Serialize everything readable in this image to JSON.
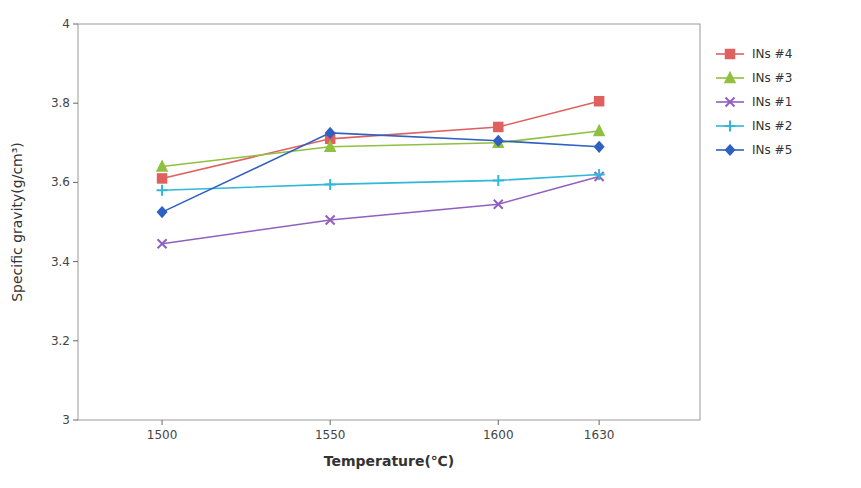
{
  "chart_data": {
    "type": "line",
    "xlabel": "Temperature(℃)",
    "ylabel": "Specific gravity(g/cm³)",
    "x": [
      1500,
      1550,
      1600,
      1630
    ],
    "series": [
      {
        "name": "INs #4",
        "color": "#e06060",
        "marker": "square",
        "line_style": "solid",
        "values": [
          3.61,
          3.71,
          3.74,
          3.805
        ]
      },
      {
        "name": "INs #3",
        "color": "#90c040",
        "marker": "triangle",
        "line_style": "solid",
        "values": [
          3.64,
          3.69,
          3.7,
          3.73
        ]
      },
      {
        "name": "INs #1",
        "color": "#9060c0",
        "marker": "x",
        "line_style": "solid",
        "values": [
          3.445,
          3.505,
          3.545,
          3.615
        ]
      },
      {
        "name": "INs #2",
        "color": "#30b8d8",
        "marker": "plus",
        "line_style": "solid",
        "values": [
          3.58,
          3.595,
          3.605,
          3.62
        ]
      },
      {
        "name": "INs #5",
        "color": "#3060c0",
        "marker": "diamond",
        "line_style": "solid",
        "values": [
          3.525,
          3.725,
          3.705,
          3.69
        ]
      }
    ],
    "xlim": [
      1475,
      1660
    ],
    "ylim": [
      3.0,
      4.0
    ],
    "xticks": [
      1500,
      1550,
      1600,
      1630
    ],
    "yticks": [
      3.0,
      3.2,
      3.4,
      3.6,
      3.8,
      4.0
    ],
    "grid": false,
    "legend": "right"
  }
}
